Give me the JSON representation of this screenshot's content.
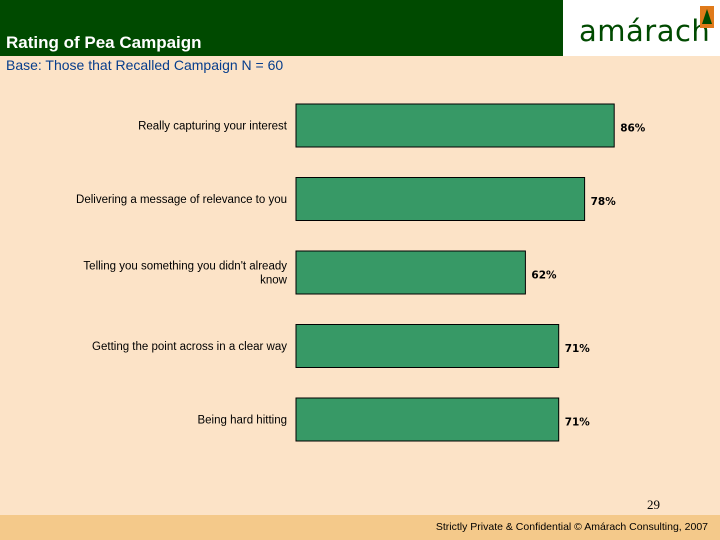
{
  "header": {
    "title": "Rating of Pea Campaign",
    "subtitle": "Base: Those that Recalled Campaign N = 60",
    "logo_text": "amárach"
  },
  "chart_data": {
    "type": "bar",
    "orientation": "horizontal",
    "categories": [
      "Really capturing your interest",
      "Delivering a message of relevance to you",
      "Telling you something you didn't already know",
      "Getting the point across in a clear way",
      "Being hard hitting"
    ],
    "category_lines": [
      [
        "Really capturing your interest"
      ],
      [
        "Delivering a message of relevance to you"
      ],
      [
        "Telling you something you didn't already",
        "know"
      ],
      [
        "Getting the point across in a clear way"
      ],
      [
        "Being hard hitting"
      ]
    ],
    "values": [
      86,
      78,
      62,
      71,
      71
    ],
    "value_labels": [
      "86%",
      "78%",
      "62%",
      "71%",
      "71%"
    ],
    "bar_color": "#379966",
    "xlim": [
      0,
      100
    ],
    "grid": false
  },
  "footer": {
    "page_number": "29",
    "text": "Strictly Private & Confidential © Amárach Consulting, 2007"
  },
  "colors": {
    "background": "#fce3c7",
    "header_band": "#004a00",
    "footer_band": "#f4c98a",
    "subtitle": "#063d8c",
    "logo_accent": "#e07a1a"
  }
}
